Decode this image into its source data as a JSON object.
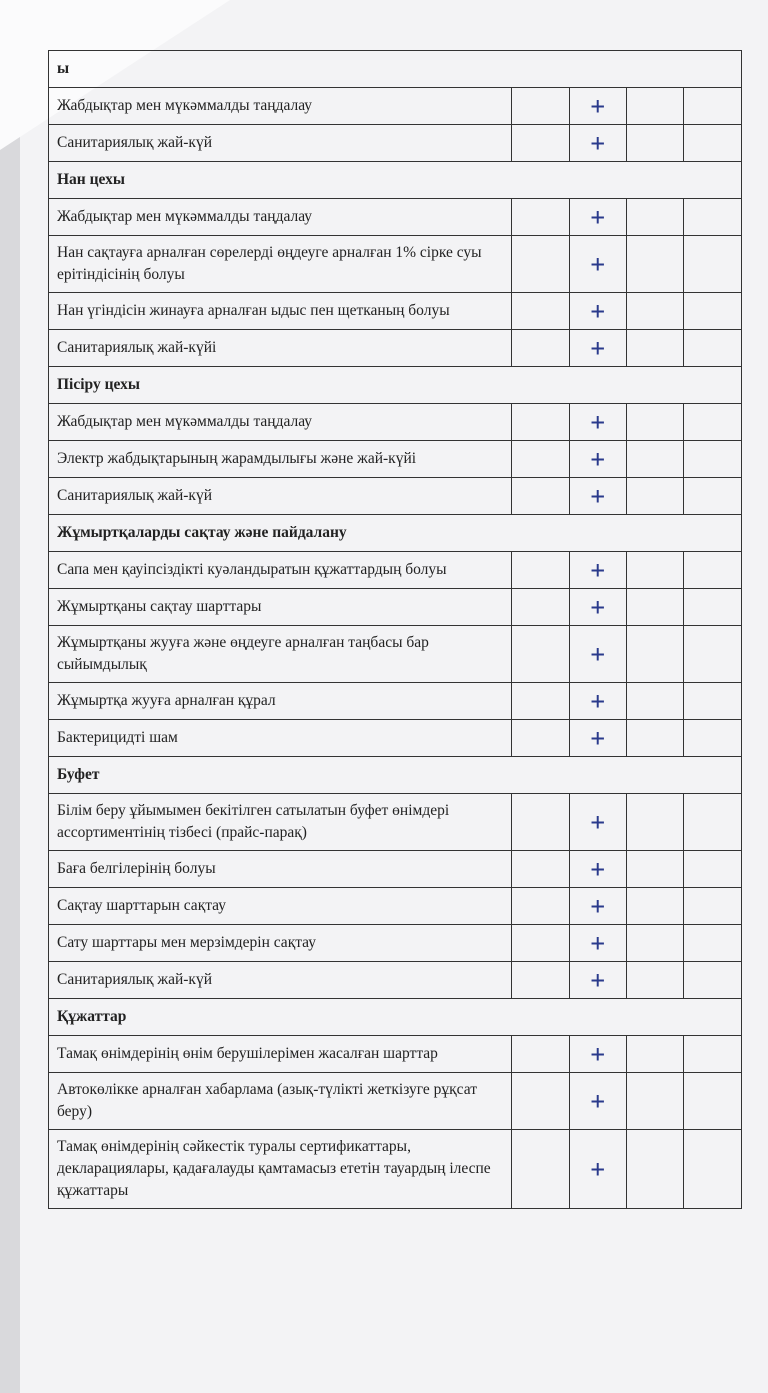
{
  "sections": [
    {
      "title": "ы",
      "rows": [
        {
          "text": "Жабдықтар мен мүкәммалды таңдалау",
          "mark": "+"
        },
        {
          "text": "Санитариялық жай-күй",
          "mark": "+"
        }
      ]
    },
    {
      "title": "Нан цехы",
      "rows": [
        {
          "text": "Жабдықтар мен мүкәммалды таңдалау",
          "mark": "+"
        },
        {
          "text": "Нан сақтауға арналған сөрелерді өңдеуге арналған 1% сірке суы ерітіндісінің болуы",
          "mark": "+"
        },
        {
          "text": "Нан үгіндісін жинауға арналған ыдыс пен щетканың болуы",
          "mark": "+"
        },
        {
          "text": "Санитариялық жай-күйі",
          "mark": "+"
        }
      ]
    },
    {
      "title": "Пісіру цехы",
      "rows": [
        {
          "text": "Жабдықтар мен мүкәммалды таңдалау",
          "mark": "+"
        },
        {
          "text": "Электр жабдықтарының жарамдылығы және жай-күйі",
          "mark": "+"
        },
        {
          "text": "Санитариялық жай-күй",
          "mark": "+"
        }
      ]
    },
    {
      "title": "Жұмыртқаларды сақтау және пайдалану",
      "rows": [
        {
          "text": "Сапа мен қауіпсіздікті куәландыратын құжаттардың болуы",
          "mark": "+"
        },
        {
          "text": "Жұмыртқаны сақтау шарттары",
          "mark": "+"
        },
        {
          "text": "Жұмыртқаны жууға және өңдеуге арналған таңбасы бар сыйымдылық",
          "mark": "+"
        },
        {
          "text": "Жұмыртқа жууға арналған құрал",
          "mark": "+"
        },
        {
          "text": "Бактерицидті шам",
          "mark": "+"
        }
      ]
    },
    {
      "title": "Буфет",
      "rows": [
        {
          "text": "Білім беру ұйымымен бекітілген сатылатын буфет өнімдері ассортиментінің тізбесі (прайс-парақ)",
          "mark": "+"
        },
        {
          "text": "Баға белгілерінің болуы",
          "mark": "+"
        },
        {
          "text": "Сақтау шарттарын сақтау",
          "mark": "+"
        },
        {
          "text": "Сату шарттары мен мерзімдерін сақтау",
          "mark": "+"
        },
        {
          "text": "Санитариялық жай-күй",
          "mark": "+"
        }
      ]
    },
    {
      "title": "Құжаттар",
      "rows": [
        {
          "text": "Тамақ өнімдерінің өнім берушілерімен  жасалған шарттар",
          "mark": "+"
        },
        {
          "text": "Автокөлікке арналған хабарлама (азық-түлікті жеткізуге рұқсат беру)",
          "mark": "+"
        },
        {
          "text": "Тамақ өнімдерінің сәйкестік туралы сертификаттары, декларациялары,  қадағалауды қамтамасыз ететін тауардың ілеспе құжаттары",
          "mark": "+"
        }
      ]
    }
  ]
}
